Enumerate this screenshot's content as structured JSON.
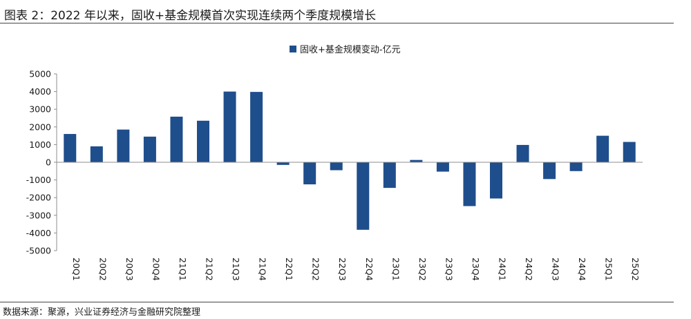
{
  "header": {
    "title": "图表 2：2022 年以来，固收+基金规模首次实现连续两个季度规模增长"
  },
  "footer": {
    "source": "数据来源：聚源，兴业证券经济与金融研究院整理"
  },
  "colors": {
    "bar": "#1f4e8c",
    "axis": "#8c8c8c",
    "text": "#1a1a1a"
  },
  "chart_data": {
    "type": "bar",
    "title": "",
    "xlabel": "",
    "ylabel": "",
    "ylim": [
      -5000,
      5000
    ],
    "yticks": [
      5000,
      4000,
      3000,
      2000,
      1000,
      0,
      -1000,
      -2000,
      -3000,
      -4000,
      -5000
    ],
    "grid": false,
    "legend_position": "top-center",
    "categories": [
      "20Q1",
      "20Q2",
      "20Q3",
      "20Q4",
      "21Q1",
      "21Q2",
      "21Q3",
      "21Q4",
      "22Q1",
      "22Q2",
      "22Q3",
      "22Q4",
      "23Q1",
      "23Q2",
      "23Q3",
      "23Q4",
      "24Q1",
      "24Q2",
      "24Q3",
      "24Q4",
      "25Q1",
      "25Q2"
    ],
    "series": [
      {
        "name": "固收+基金规模变动-亿元",
        "values": [
          1600,
          900,
          1850,
          1450,
          2580,
          2350,
          4000,
          3980,
          -150,
          -1250,
          -450,
          -3820,
          -1450,
          130,
          -530,
          -2480,
          -2050,
          980,
          -950,
          -500,
          1500,
          1150
        ]
      }
    ]
  }
}
